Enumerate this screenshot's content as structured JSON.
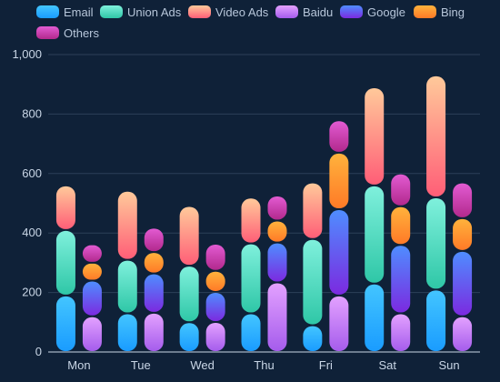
{
  "chart_data": {
    "type": "bar",
    "stacked_groups": [
      [
        "Email",
        "Union Ads",
        "Video Ads"
      ],
      [
        "Baidu",
        "Google",
        "Bing",
        "Others"
      ]
    ],
    "categories": [
      "Mon",
      "Tue",
      "Wed",
      "Thu",
      "Fri",
      "Sat",
      "Sun"
    ],
    "series": [
      {
        "name": "Email",
        "stack": "ad",
        "values": [
          190,
          130,
          100,
          130,
          90,
          230,
          210
        ]
      },
      {
        "name": "Union Ads",
        "stack": "ad",
        "values": [
          220,
          180,
          190,
          235,
          290,
          330,
          310
        ]
      },
      {
        "name": "Video Ads",
        "stack": "ad",
        "values": [
          150,
          232,
          201,
          154,
          190,
          330,
          410
        ]
      },
      {
        "name": "Baidu",
        "stack": "search",
        "values": [
          120,
          132,
          101,
          234,
          190,
          130,
          120
        ]
      },
      {
        "name": "Google",
        "stack": "search",
        "values": [
          120,
          132,
          101,
          134,
          290,
          230,
          220
        ]
      },
      {
        "name": "Bing",
        "stack": "search",
        "values": [
          60,
          72,
          71,
          74,
          190,
          130,
          110
        ]
      },
      {
        "name": "Others",
        "stack": "search",
        "values": [
          62,
          82,
          91,
          84,
          109,
          110,
          120
        ]
      }
    ],
    "ylim": [
      0,
      1000
    ],
    "yticks": [
      0,
      200,
      400,
      600,
      800,
      1000
    ],
    "ytick_labels": [
      "0",
      "200",
      "400",
      "600",
      "800",
      "1,000"
    ],
    "grid": true,
    "legend_position": "top-left",
    "colors": {
      "Email": [
        "#43c5ff",
        "#1a9cff"
      ],
      "Union Ads": [
        "#7ff0dc",
        "#2fc7a7"
      ],
      "Video Ads": [
        "#ffc99a",
        "#ff5e77"
      ],
      "Baidu": [
        "#e3a1ff",
        "#a55cec"
      ],
      "Google": [
        "#4f8dff",
        "#7b2ae0"
      ],
      "Bing": [
        "#ffb23c",
        "#ff7a27"
      ],
      "Others": [
        "#e25bd2",
        "#b2298d"
      ]
    }
  }
}
